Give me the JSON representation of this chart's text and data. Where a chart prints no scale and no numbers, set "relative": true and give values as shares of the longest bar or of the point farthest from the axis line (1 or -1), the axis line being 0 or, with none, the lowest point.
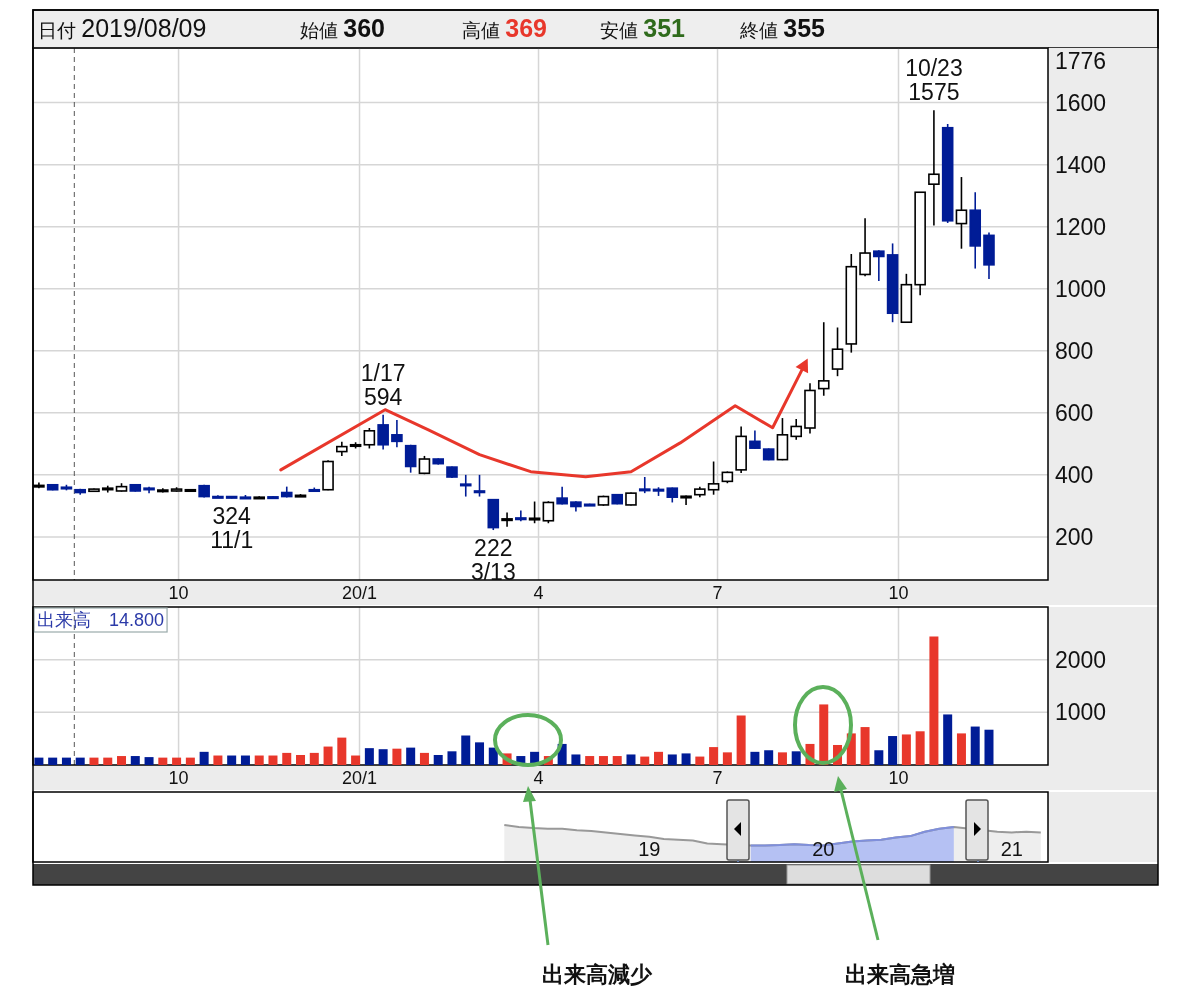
{
  "chart_data": [
    {
      "type": "candlestick",
      "x": [
        "2019-07-22",
        "2019-07-29",
        "2019-08-05",
        "2019-08-12",
        "2019-08-19",
        "2019-08-26",
        "2019-09-02",
        "2019-09-09",
        "2019-09-16",
        "2019-09-23",
        "2019-09-30",
        "2019-10-07",
        "2019-10-14",
        "2019-10-21",
        "2019-10-28",
        "2019-11-04",
        "2019-11-11",
        "2019-11-18",
        "2019-11-25",
        "2019-12-02",
        "2019-12-09",
        "2019-12-16",
        "2019-12-23",
        "2019-12-30",
        "2020-01-06",
        "2020-01-13",
        "2020-01-20",
        "2020-01-27",
        "2020-02-03",
        "2020-02-10",
        "2020-02-17",
        "2020-02-24",
        "2020-03-02",
        "2020-03-09",
        "2020-03-16",
        "2020-03-23",
        "2020-03-30",
        "2020-04-06",
        "2020-04-13",
        "2020-04-20",
        "2020-04-27",
        "2020-05-04",
        "2020-05-11",
        "2020-05-18",
        "2020-05-25",
        "2020-06-01",
        "2020-06-08",
        "2020-06-15",
        "2020-06-22",
        "2020-06-29",
        "2020-07-06",
        "2020-07-13",
        "2020-07-20",
        "2020-07-27",
        "2020-08-03",
        "2020-08-10",
        "2020-08-17",
        "2020-08-24",
        "2020-08-31",
        "2020-09-07",
        "2020-09-14",
        "2020-09-21",
        "2020-09-28",
        "2020-10-05",
        "2020-10-12",
        "2020-10-19",
        "2020-10-26",
        "2020-11-02",
        "2020-11-09",
        "2020-11-16"
      ],
      "ohlc": [
        [
          365,
          375,
          357,
          366
        ],
        [
          368,
          370,
          350,
          352
        ],
        [
          360,
          368,
          350,
          358
        ],
        [
          352,
          355,
          336,
          343
        ],
        [
          347,
          356,
          345,
          354
        ],
        [
          356,
          365,
          343,
          357
        ],
        [
          348,
          373,
          346,
          362
        ],
        [
          368,
          370,
          346,
          348
        ],
        [
          357,
          362,
          341,
          355
        ],
        [
          350,
          357,
          343,
          351
        ],
        [
          348,
          360,
          346,
          354
        ],
        [
          351,
          354,
          349,
          352
        ],
        [
          365,
          368,
          327,
          330
        ],
        [
          330,
          334,
          327,
          329
        ],
        [
          330,
          331,
          324,
          327
        ],
        [
          328,
          335,
          325,
          327
        ],
        [
          327,
          331,
          325,
          328
        ],
        [
          329,
          331,
          325,
          327
        ],
        [
          343,
          362,
          327,
          330
        ],
        [
          333,
          338,
          330,
          334
        ],
        [
          352,
          359,
          346,
          349
        ],
        [
          352,
          447,
          350,
          443
        ],
        [
          475,
          507,
          461,
          491
        ],
        [
          496,
          505,
          485,
          497
        ],
        [
          497,
          551,
          485,
          542
        ],
        [
          561,
          594,
          482,
          497
        ],
        [
          529,
          577,
          489,
          508
        ],
        [
          494,
          497,
          407,
          427
        ],
        [
          405,
          461,
          402,
          451
        ],
        [
          451,
          453,
          433,
          436
        ],
        [
          425,
          427,
          390,
          393
        ],
        [
          370,
          400,
          330,
          368
        ],
        [
          348,
          400,
          330,
          346
        ],
        [
          320,
          322,
          222,
          230
        ],
        [
          257,
          279,
          233,
          258
        ],
        [
          261,
          285,
          250,
          260
        ],
        [
          259,
          314,
          244,
          260
        ],
        [
          252,
          315,
          244,
          311
        ],
        [
          325,
          362,
          304,
          307
        ],
        [
          312,
          315,
          282,
          298
        ],
        [
          305,
          307,
          300,
          303
        ],
        [
          303,
          333,
          300,
          330
        ],
        [
          336,
          338,
          305,
          307
        ],
        [
          303,
          343,
          301,
          341
        ],
        [
          354,
          393,
          341,
          352
        ],
        [
          353,
          360,
          332,
          352
        ],
        [
          357,
          359,
          311,
          328
        ],
        [
          330,
          333,
          303,
          331
        ],
        [
          336,
          362,
          328,
          354
        ],
        [
          352,
          443,
          336,
          371
        ],
        [
          379,
          411,
          373,
          408
        ],
        [
          416,
          556,
          406,
          524
        ],
        [
          508,
          543,
          484,
          486
        ],
        [
          483,
          485,
          447,
          449
        ],
        [
          449,
          583,
          447,
          529
        ],
        [
          524,
          580,
          513,
          556
        ],
        [
          551,
          695,
          533,
          672
        ],
        [
          678,
          892,
          655,
          703
        ],
        [
          741,
          875,
          718,
          805
        ],
        [
          822,
          1112,
          794,
          1071
        ],
        [
          1046,
          1227,
          1040,
          1115
        ],
        [
          1121,
          1124,
          1025,
          1104
        ],
        [
          1109,
          1146,
          892,
          921
        ],
        [
          892,
          1048,
          892,
          1013
        ],
        [
          1013,
          1311,
          979,
          1311
        ],
        [
          1337,
          1575,
          1204,
          1369
        ],
        [
          1519,
          1531,
          1212,
          1219
        ],
        [
          1210,
          1360,
          1129,
          1253
        ],
        [
          1253,
          1311,
          1065,
          1138
        ],
        [
          1172,
          1181,
          1031,
          1077
        ]
      ],
      "xlim": [
        "2019-07-19",
        "2020-12-16"
      ],
      "xticks": [
        {
          "value": "2019-10-01",
          "label": "10"
        },
        {
          "value": "2020-01-01",
          "label": "20/1"
        },
        {
          "value": "2020-04-01",
          "label": "4"
        },
        {
          "value": "2020-07-01",
          "label": "7"
        },
        {
          "value": "2020-10-01",
          "label": "10"
        }
      ],
      "ylim": [
        61,
        1776
      ],
      "yticks": [
        200,
        400,
        600,
        800,
        1000,
        1200,
        1400,
        1600,
        1776
      ],
      "grid": true,
      "ref_lines": [
        {
          "axis": "x",
          "value": "2019-08-09",
          "line_style": "dashed",
          "color": "#555555"
        }
      ],
      "series": [
        {
          "type": "line",
          "color": "#e8372b",
          "x": [
            "2019-11-22",
            "2020-01-14",
            "2020-02-05",
            "2020-03-02",
            "2020-03-28",
            "2020-04-25",
            "2020-05-18",
            "2020-06-12",
            "2020-07-10",
            "2020-07-29",
            "2020-08-14"
          ],
          "values": [
            416,
            610,
            545,
            465,
            410,
            394,
            410,
            503,
            623,
            552,
            752
          ]
        }
      ],
      "annotations": [
        "日付 2019/08/09",
        "始値 360",
        "高値 369",
        "安値 351",
        "終値 355",
        {
          "text": "324\n11/1",
          "x": "2019-10-28",
          "y": 324
        },
        {
          "text": "1/17\n594",
          "x": "2020-01-13",
          "y": 594
        },
        {
          "text": "222\n3/13",
          "x": "2020-03-09",
          "y": 222
        },
        {
          "text": "10/23\n1575",
          "x": "2020-10-19",
          "y": 1575
        }
      ]
    },
    {
      "type": "bar",
      "x": [
        "2019-07-22",
        "2019-07-29",
        "2019-08-05",
        "2019-08-12",
        "2019-08-19",
        "2019-08-26",
        "2019-09-02",
        "2019-09-09",
        "2019-09-16",
        "2019-09-23",
        "2019-09-30",
        "2019-10-07",
        "2019-10-14",
        "2019-10-21",
        "2019-10-28",
        "2019-11-04",
        "2019-11-11",
        "2019-11-18",
        "2019-11-25",
        "2019-12-02",
        "2019-12-09",
        "2019-12-16",
        "2019-12-23",
        "2019-12-30",
        "2020-01-06",
        "2020-01-13",
        "2020-01-20",
        "2020-01-27",
        "2020-02-03",
        "2020-02-10",
        "2020-02-17",
        "2020-02-24",
        "2020-03-02",
        "2020-03-09",
        "2020-03-16",
        "2020-03-23",
        "2020-03-30",
        "2020-04-06",
        "2020-04-13",
        "2020-04-20",
        "2020-04-27",
        "2020-05-04",
        "2020-05-11",
        "2020-05-18",
        "2020-05-25",
        "2020-06-01",
        "2020-06-08",
        "2020-06-15",
        "2020-06-22",
        "2020-06-29",
        "2020-07-06",
        "2020-07-13",
        "2020-07-20",
        "2020-07-27",
        "2020-08-03",
        "2020-08-10",
        "2020-08-17",
        "2020-08-24",
        "2020-08-31",
        "2020-09-07",
        "2020-09-14",
        "2020-09-21",
        "2020-09-28",
        "2020-10-05",
        "2020-10-12",
        "2020-10-19",
        "2020-10-26",
        "2020-11-02",
        "2020-11-09",
        "2020-11-16"
      ],
      "values": [
        140,
        140,
        140,
        140,
        140,
        140,
        170,
        170,
        150,
        140,
        140,
        140,
        250,
        180,
        180,
        180,
        180,
        180,
        230,
        190,
        230,
        350,
        520,
        180,
        320,
        300,
        310,
        330,
        230,
        190,
        260,
        560,
        430,
        330,
        220,
        170,
        250,
        170,
        400,
        200,
        170,
        170,
        170,
        200,
        160,
        250,
        200,
        220,
        160,
        340,
        240,
        940,
        250,
        280,
        240,
        260,
        400,
        1150,
        380,
        600,
        720,
        280,
        550,
        580,
        640,
        2440,
        960,
        600,
        730,
        670
      ],
      "colors": [
        "#001c96",
        "#001c96",
        "#001c96",
        "#001c96",
        "#e8372b",
        "#e8372b",
        "#e8372b",
        "#001c96",
        "#001c96",
        "#e8372b",
        "#e8372b",
        "#e8372b",
        "#001c96",
        "#e8372b",
        "#001c96",
        "#001c96",
        "#e8372b",
        "#e8372b",
        "#e8372b",
        "#e8372b",
        "#e8372b",
        "#e8372b",
        "#e8372b",
        "#e8372b",
        "#001c96",
        "#001c96",
        "#e8372b",
        "#001c96",
        "#e8372b",
        "#001c96",
        "#001c96",
        "#001c96",
        "#001c96",
        "#001c96",
        "#e8372b",
        "#001c96",
        "#001c96",
        "#e8372b",
        "#001c96",
        "#001c96",
        "#e8372b",
        "#e8372b",
        "#e8372b",
        "#001c96",
        "#e8372b",
        "#e8372b",
        "#001c96",
        "#001c96",
        "#e8372b",
        "#e8372b",
        "#e8372b",
        "#e8372b",
        "#001c96",
        "#001c96",
        "#e8372b",
        "#001c96",
        "#e8372b",
        "#e8372b",
        "#e8372b",
        "#e8372b",
        "#e8372b",
        "#001c96",
        "#001c96",
        "#e8372b",
        "#e8372b",
        "#e8372b",
        "#001c96",
        "#e8372b",
        "#001c96",
        "#001c96"
      ],
      "xlim": [
        "2019-07-19",
        "2020-12-16"
      ],
      "xticks": [
        {
          "value": "2019-10-01",
          "label": "10"
        },
        {
          "value": "2020-01-01",
          "label": "20/1"
        },
        {
          "value": "2020-04-01",
          "label": "4"
        },
        {
          "value": "2020-07-01",
          "label": "7"
        },
        {
          "value": "2020-10-01",
          "label": "10"
        }
      ],
      "ylim": [
        0,
        3000
      ],
      "yticks": [
        1000,
        2000
      ],
      "grid": true,
      "ref_lines": [
        {
          "axis": "x",
          "value": "2019-08-09",
          "line_style": "dashed",
          "color": "#555555"
        }
      ],
      "annotations": [
        "出来高　14.800",
        "出来高減少",
        "出来高急増"
      ]
    },
    {
      "type": "area",
      "relative": true,
      "categories": [
        null,
        null,
        null,
        null,
        null,
        null,
        null,
        null,
        null,
        null,
        null,
        null,
        null,
        null,
        null,
        null,
        null,
        null,
        null,
        null,
        null,
        null,
        null,
        null,
        null,
        null,
        null,
        null,
        null,
        null,
        null,
        null,
        null,
        null,
        null,
        null,
        null,
        null,
        null,
        null,
        null,
        null,
        "19",
        null,
        null,
        null,
        null,
        null,
        null,
        null,
        null,
        null,
        null,
        null,
        "20",
        null,
        null,
        null,
        null,
        null,
        null,
        null,
        null,
        null,
        null,
        null,
        null,
        "21",
        null,
        null
      ],
      "series": [
        {
          "color": "#999999",
          "values": [
            null,
            null,
            null,
            null,
            null,
            null,
            null,
            null,
            null,
            null,
            null,
            null,
            null,
            null,
            null,
            null,
            null,
            null,
            null,
            null,
            null,
            null,
            null,
            null,
            null,
            null,
            null,
            null,
            null,
            null,
            null,
            null,
            1.0,
            0.95,
            0.92,
            0.9,
            0.9,
            0.86,
            0.84,
            0.8,
            0.76,
            0.72,
            0.68,
            0.62,
            0.6,
            0.58,
            0.5,
            0.48,
            null,
            0.45,
            0.45,
            0.46,
            0.48,
            0.46,
            0.45,
            0.5,
            0.55,
            0.58,
            0.6,
            0.66,
            0.7,
            0.82,
            0.9,
            0.95,
            null,
            null,
            0.82,
            0.8,
            0.82,
            0.8
          ]
        },
        {
          "color": "#b5c1f3",
          "values": [
            null,
            null,
            null,
            null,
            null,
            null,
            null,
            null,
            null,
            null,
            null,
            null,
            null,
            null,
            null,
            null,
            null,
            null,
            null,
            null,
            null,
            null,
            null,
            null,
            null,
            null,
            null,
            null,
            null,
            null,
            null,
            null,
            null,
            null,
            null,
            null,
            null,
            null,
            null,
            null,
            null,
            null,
            null,
            null,
            null,
            null,
            null,
            null,
            null,
            0.45,
            0.45,
            0.46,
            0.48,
            0.46,
            0.45,
            0.5,
            0.55,
            0.58,
            0.6,
            0.66,
            0.7,
            0.82,
            0.9,
            0.95,
            null,
            null,
            null,
            null,
            null,
            null
          ]
        }
      ]
    }
  ]
}
